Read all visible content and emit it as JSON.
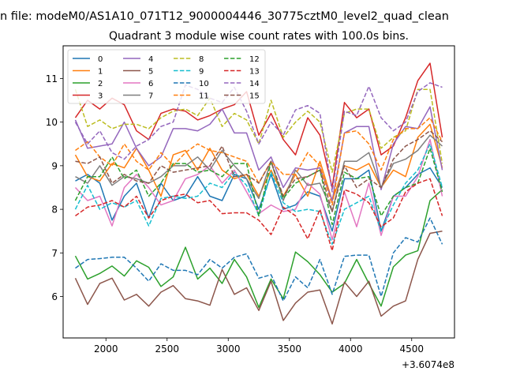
{
  "chart_data": {
    "type": "line",
    "suptitle": "n file: modeM0/AS1A10_071T12_9000004446_30775cztM0_level2_quad_clean",
    "title": "Quadrant 3 module wise count rates with 100.0s bins.",
    "xlabel": "",
    "ylabel": "",
    "x_offset_label": "+3.6074e8",
    "xlim": [
      1650,
      4850
    ],
    "ylim": [
      5.05,
      11.75
    ],
    "x_ticks": [
      2000,
      2500,
      3000,
      3500,
      4000,
      4500
    ],
    "y_ticks": [
      6,
      7,
      8,
      9,
      10,
      11
    ],
    "grid": false,
    "legend": {
      "position": "top-left",
      "columns": 4
    },
    "x": [
      1750,
      1850,
      1950,
      2050,
      2150,
      2250,
      2350,
      2450,
      2550,
      2650,
      2750,
      2850,
      2950,
      3050,
      3150,
      3250,
      3350,
      3450,
      3550,
      3650,
      3750,
      3850,
      3950,
      4050,
      4150,
      4250,
      4350,
      4450,
      4550,
      4650,
      4750
    ],
    "series": [
      {
        "name": "0",
        "color": "#1f77b4",
        "dash": "solid",
        "values": [
          8.65,
          8.8,
          8.6,
          7.75,
          8.3,
          8.6,
          7.8,
          8.6,
          8.2,
          8.3,
          8.75,
          8.3,
          8.2,
          8.8,
          8.7,
          8.0,
          8.8,
          8.0,
          8.1,
          8.4,
          8.3,
          7.5,
          8.7,
          8.7,
          8.9,
          7.5,
          8.3,
          8.5,
          8.8,
          8.95,
          8.5
        ]
      },
      {
        "name": "1",
        "color": "#ff7f0e",
        "dash": "solid",
        "values": [
          9.25,
          8.75,
          8.65,
          9.05,
          8.95,
          9.4,
          8.9,
          8.3,
          9.25,
          9.35,
          8.9,
          9.4,
          8.9,
          8.7,
          8.8,
          8.3,
          8.9,
          8.3,
          8.8,
          8.3,
          9.1,
          8.2,
          9.0,
          8.9,
          9.05,
          8.5,
          8.9,
          8.75,
          9.65,
          9.95,
          8.95
        ]
      },
      {
        "name": "2",
        "color": "#2ca02c",
        "dash": "solid",
        "values": [
          6.93,
          6.4,
          6.53,
          6.7,
          6.47,
          6.82,
          6.67,
          6.23,
          6.45,
          7.13,
          6.4,
          6.65,
          6.3,
          6.85,
          6.45,
          5.75,
          6.4,
          5.95,
          7.02,
          6.8,
          6.5,
          6.1,
          6.3,
          6.85,
          6.3,
          5.78,
          6.68,
          6.95,
          7.05,
          8.2,
          8.45
        ]
      },
      {
        "name": "3",
        "color": "#d62728",
        "dash": "solid",
        "values": [
          10.1,
          10.5,
          10.3,
          10.55,
          10.4,
          9.8,
          9.6,
          10.2,
          10.3,
          10.25,
          10.05,
          10.15,
          10.3,
          10.4,
          10.7,
          9.7,
          10.2,
          9.6,
          9.25,
          10.1,
          9.7,
          8.5,
          10.45,
          10.1,
          10.3,
          9.25,
          9.45,
          10.1,
          10.95,
          11.35,
          9.65
        ]
      },
      {
        "name": "4",
        "color": "#9467bd",
        "dash": "solid",
        "values": [
          10.05,
          9.4,
          9.45,
          9.5,
          10.0,
          9.4,
          9.0,
          9.2,
          9.85,
          9.85,
          9.8,
          9.95,
          10.3,
          9.75,
          9.75,
          8.9,
          9.2,
          8.5,
          8.95,
          8.9,
          8.95,
          8.2,
          9.75,
          9.9,
          9.9,
          8.45,
          9.5,
          9.9,
          9.85,
          10.35,
          8.9
        ]
      },
      {
        "name": "5",
        "color": "#8c564b",
        "dash": "solid",
        "values": [
          6.42,
          5.82,
          6.3,
          6.42,
          5.92,
          6.05,
          5.78,
          6.1,
          6.25,
          5.95,
          5.9,
          5.8,
          6.62,
          6.05,
          6.2,
          5.68,
          6.35,
          5.45,
          5.85,
          6.1,
          6.15,
          5.37,
          6.33,
          6.0,
          6.35,
          5.55,
          5.78,
          5.9,
          6.85,
          7.45,
          7.5
        ]
      },
      {
        "name": "6",
        "color": "#e377c2",
        "dash": "solid",
        "values": [
          8.5,
          8.2,
          8.3,
          7.62,
          8.5,
          8.8,
          8.5,
          8.1,
          8.2,
          8.7,
          8.8,
          9.0,
          8.6,
          8.9,
          8.4,
          7.9,
          8.1,
          7.95,
          8.0,
          8.6,
          8.35,
          7.3,
          8.4,
          7.6,
          8.6,
          7.4,
          8.3,
          8.3,
          8.75,
          9.6,
          8.3
        ]
      },
      {
        "name": "7",
        "color": "#7f7f7f",
        "dash": "solid",
        "values": [
          8.75,
          8.6,
          9.0,
          8.55,
          8.75,
          8.7,
          8.6,
          8.75,
          9.0,
          9.0,
          9.2,
          8.9,
          9.35,
          9.0,
          8.7,
          8.25,
          9.1,
          8.2,
          8.9,
          8.55,
          8.6,
          7.95,
          9.1,
          9.1,
          9.3,
          8.5,
          9.05,
          9.15,
          9.35,
          9.7,
          9.45
        ]
      },
      {
        "name": "8",
        "color": "#bcbd22",
        "dash": "dashed",
        "values": [
          10.75,
          9.9,
          10.05,
          9.85,
          9.95,
          9.95,
          9.85,
          10.1,
          10.25,
          10.3,
          10.15,
          10.55,
          9.9,
          10.2,
          10.05,
          9.5,
          10.5,
          9.65,
          10.0,
          10.25,
          10.0,
          8.85,
          10.2,
          10.3,
          10.3,
          9.4,
          9.65,
          9.8,
          10.75,
          10.75,
          9.05
        ]
      },
      {
        "name": "9",
        "color": "#17becf",
        "dash": "dashed",
        "values": [
          8.0,
          8.55,
          8.0,
          8.15,
          8.05,
          8.2,
          7.62,
          8.25,
          8.3,
          8.25,
          8.3,
          8.6,
          8.5,
          8.85,
          8.55,
          7.85,
          8.85,
          8.15,
          7.95,
          8.0,
          7.95,
          7.2,
          8.0,
          8.15,
          8.3,
          7.5,
          8.1,
          8.6,
          8.9,
          9.5,
          8.5
        ]
      },
      {
        "name": "10",
        "color": "#1f77b4",
        "dash": "dashed",
        "values": [
          6.65,
          6.85,
          6.87,
          6.9,
          6.9,
          6.65,
          6.35,
          6.75,
          6.6,
          6.6,
          6.5,
          6.85,
          6.65,
          6.9,
          6.98,
          6.42,
          6.5,
          5.9,
          6.45,
          6.2,
          6.85,
          6.05,
          6.92,
          6.95,
          6.95,
          6.0,
          7.0,
          7.35,
          7.25,
          7.8,
          7.2
        ]
      },
      {
        "name": "11",
        "color": "#ff7f0e",
        "dash": "dashed",
        "values": [
          9.35,
          9.55,
          9.2,
          9.0,
          9.5,
          9.1,
          8.9,
          9.3,
          9.0,
          9.3,
          9.5,
          9.35,
          9.3,
          9.2,
          9.1,
          8.6,
          9.1,
          8.8,
          8.8,
          9.3,
          9.0,
          8.1,
          9.75,
          9.8,
          9.5,
          8.9,
          9.6,
          9.85,
          9.85,
          10.1,
          9.55
        ]
      },
      {
        "name": "12",
        "color": "#2ca02c",
        "dash": "dashed",
        "values": [
          8.2,
          8.75,
          8.75,
          9.2,
          8.7,
          8.9,
          8.3,
          8.6,
          9.05,
          9.05,
          8.85,
          8.9,
          8.75,
          9.05,
          9.05,
          7.85,
          9.1,
          8.25,
          8.6,
          8.75,
          8.9,
          7.65,
          8.85,
          8.7,
          8.75,
          7.85,
          8.3,
          8.5,
          8.6,
          9.4,
          8.4
        ]
      },
      {
        "name": "13",
        "color": "#d62728",
        "dash": "dashed",
        "values": [
          7.85,
          8.05,
          8.1,
          8.2,
          8.05,
          8.3,
          7.8,
          8.2,
          8.3,
          8.35,
          8.15,
          8.2,
          7.9,
          7.92,
          7.92,
          7.75,
          7.42,
          8.05,
          7.85,
          7.32,
          8.0,
          7.05,
          8.45,
          8.35,
          8.15,
          7.6,
          7.8,
          8.4,
          8.6,
          8.7,
          7.85
        ]
      },
      {
        "name": "14",
        "color": "#9467bd",
        "dash": "dashed",
        "values": [
          10.0,
          9.5,
          9.8,
          9.3,
          9.15,
          9.45,
          9.6,
          9.9,
          10.0,
          10.85,
          10.75,
          10.55,
          10.45,
          10.8,
          10.25,
          9.5,
          10.0,
          9.7,
          10.28,
          10.38,
          10.2,
          8.4,
          10.25,
          10.15,
          10.82,
          10.1,
          9.8,
          10.0,
          10.7,
          10.9,
          10.8
        ]
      },
      {
        "name": "15",
        "color": "#8c564b",
        "dash": "dashed",
        "values": [
          9.1,
          9.05,
          9.2,
          8.6,
          8.8,
          8.65,
          8.6,
          9.0,
          8.85,
          8.9,
          8.95,
          9.0,
          9.45,
          8.75,
          8.8,
          8.6,
          9.1,
          8.3,
          8.7,
          8.75,
          8.9,
          7.95,
          9.0,
          8.5,
          8.7,
          8.5,
          9.15,
          9.45,
          9.6,
          9.8,
          9.55
        ]
      }
    ]
  }
}
